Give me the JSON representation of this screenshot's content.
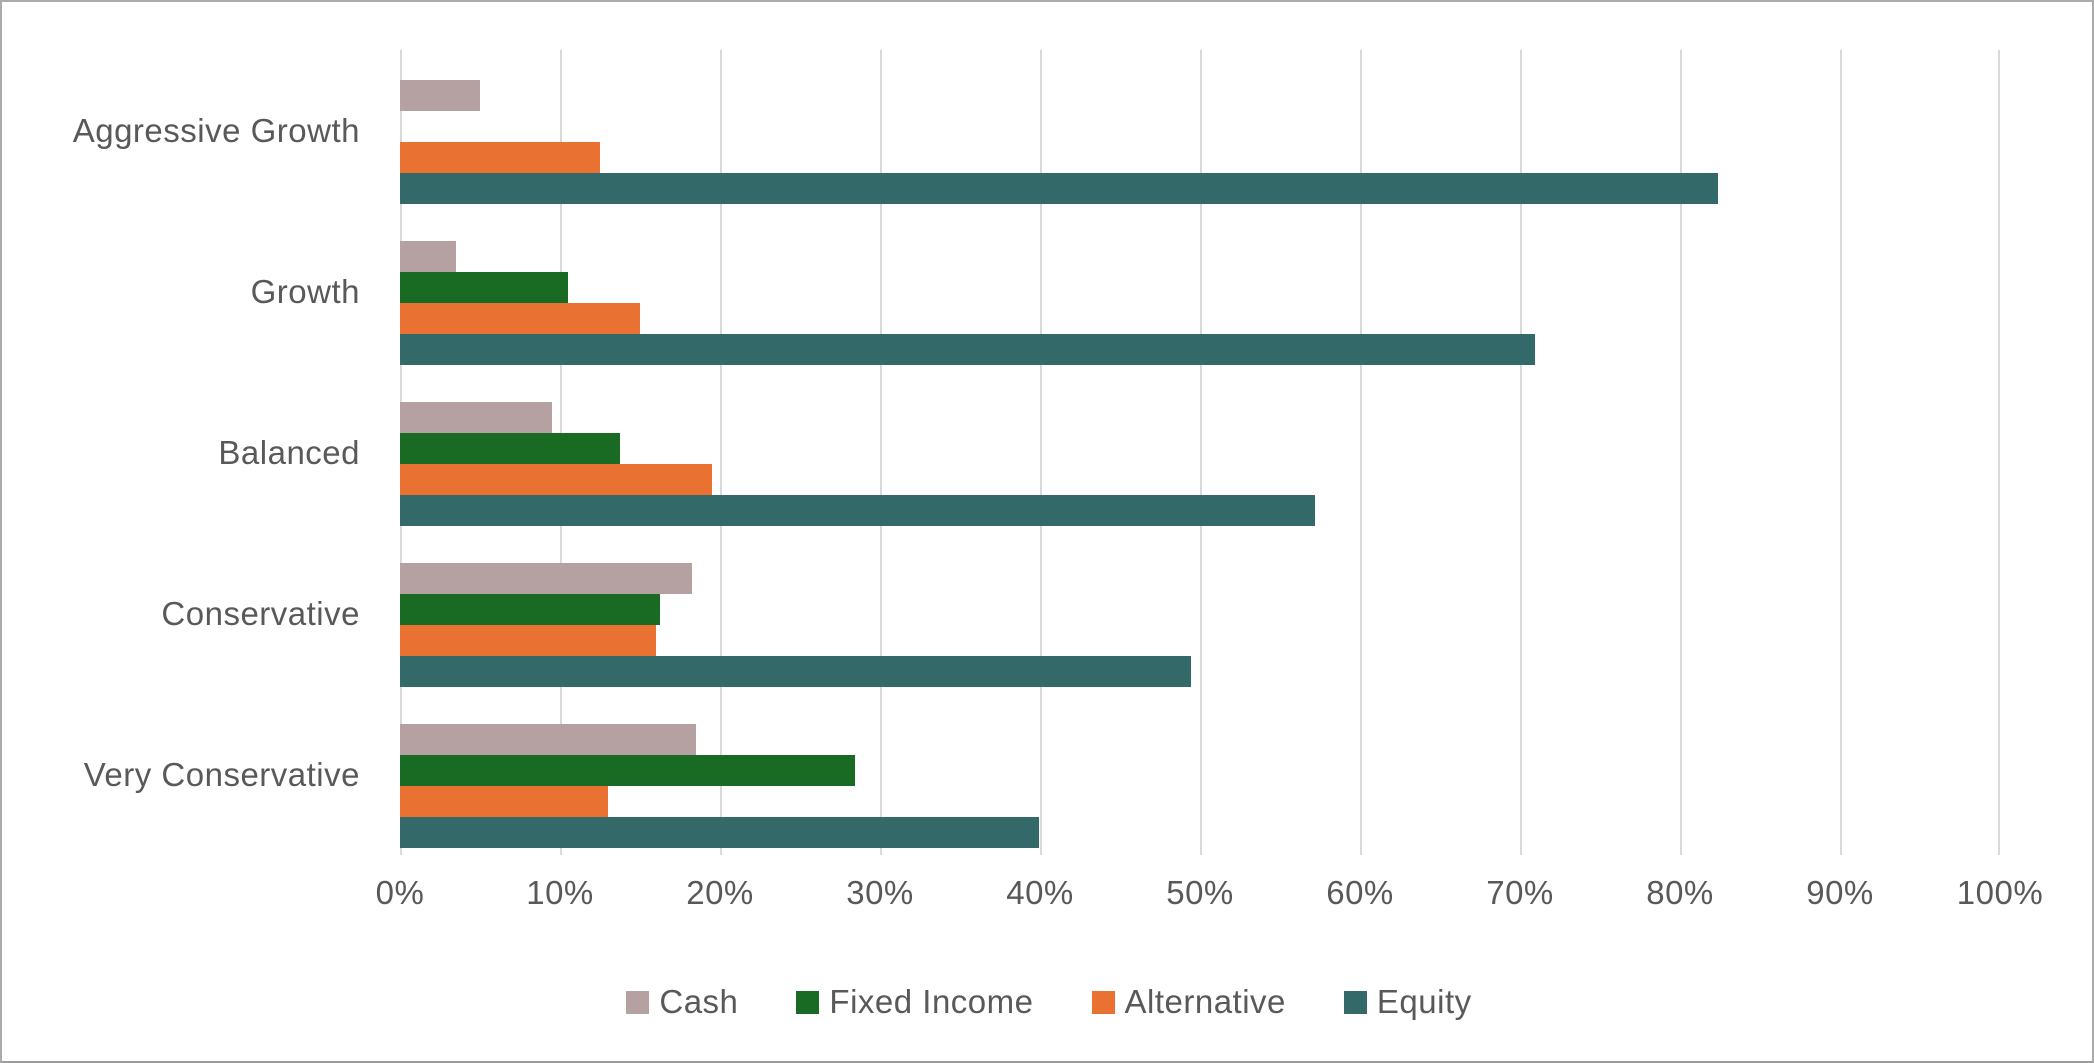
{
  "chart_data": {
    "type": "bar",
    "orientation": "horizontal",
    "title": "",
    "categories": [
      "Aggressive Growth",
      "Growth",
      "Balanced",
      "Conservative",
      "Very Conservative"
    ],
    "series": [
      {
        "name": "Cash",
        "color": "#b6a1a2",
        "values": [
          5,
          3.5,
          9.5,
          18.25,
          18.5
        ]
      },
      {
        "name": "Fixed Income",
        "color": "#196b24",
        "values": [
          0,
          10.5,
          13.75,
          16.25,
          28.5
        ]
      },
      {
        "name": "Alternative",
        "color": "#e97132",
        "values": [
          12.5,
          15,
          19.5,
          16,
          13
        ]
      },
      {
        "name": "Equity",
        "color": "#34696a",
        "values": [
          82.5,
          71,
          57.25,
          49.5,
          40
        ]
      }
    ],
    "x_axis": {
      "min": 0,
      "max": 100,
      "unit": "%",
      "tick_labels": [
        "0%",
        "10%",
        "20%",
        "30%",
        "40%",
        "50%",
        "60%",
        "70%",
        "80%",
        "90%",
        "100%"
      ]
    },
    "legend": {
      "position": "bottom",
      "entries": [
        "Cash",
        "Fixed Income",
        "Alternative",
        "Equity"
      ]
    },
    "grid": "vertical-only",
    "colors": {
      "gridline": "#d9d9d9",
      "axis_text": "#595959",
      "background": "#ffffff",
      "border": "#ababab"
    }
  }
}
